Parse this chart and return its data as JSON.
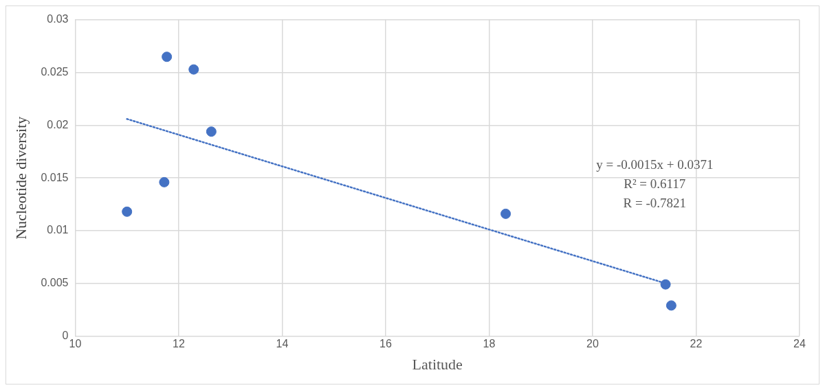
{
  "chart_data": {
    "type": "scatter",
    "xlabel": "Latitude",
    "ylabel": "Nucleotide diversity",
    "xlim": [
      10,
      24
    ],
    "xticks": [
      10,
      12,
      14,
      16,
      18,
      20,
      22,
      24
    ],
    "ylim": [
      0,
      0.03
    ],
    "yticks": [
      0,
      0.005,
      0.01,
      0.015,
      0.02,
      0.025,
      0.03
    ],
    "grid": true,
    "legend": false,
    "series": [
      {
        "marker": "circle",
        "color": "#4472c4",
        "x": [
          11.0,
          11.77,
          12.29,
          12.63,
          11.72,
          18.32,
          21.41,
          21.52
        ],
        "values": [
          0.0118,
          0.0265,
          0.0253,
          0.0194,
          0.0146,
          0.0116,
          0.0049,
          0.0029
        ]
      },
      {
        "type": "line",
        "marker": "none",
        "color": "#4472c4",
        "line_style": "dotted",
        "x": [
          11.0,
          21.41
        ],
        "values": [
          0.0206,
          0.005
        ]
      }
    ],
    "annotations": [
      "y = -0.0015x + 0.0371",
      "R² = 0.6117",
      "R = -0.7821"
    ]
  }
}
